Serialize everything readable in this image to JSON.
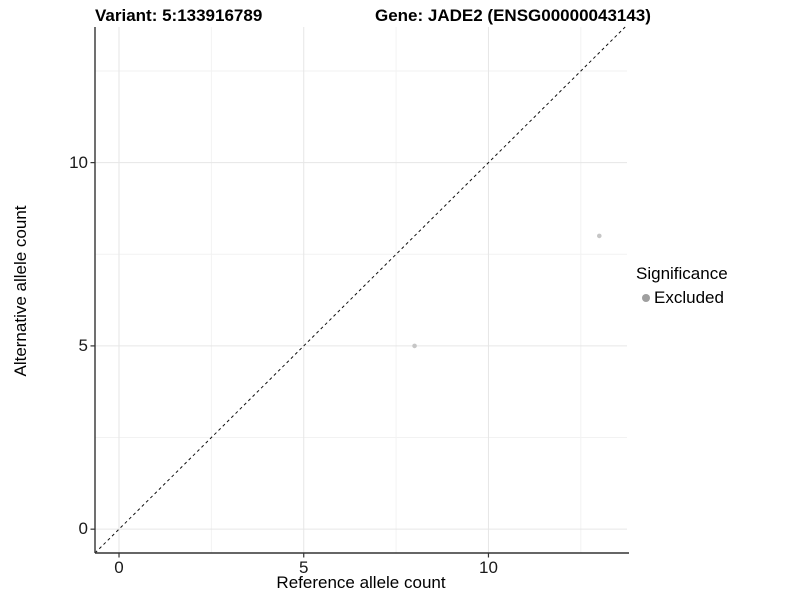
{
  "title_left": "Variant: 5:133916789",
  "title_right": "Gene: JADE2 (ENSG00000043143)",
  "chart_data": {
    "type": "scatter",
    "xlabel": "Reference allele count",
    "ylabel": "Alternative allele count",
    "xlim": [
      -0.65,
      13.75
    ],
    "ylim": [
      -0.65,
      13.7
    ],
    "x_ticks": [
      0,
      5,
      10
    ],
    "y_ticks": [
      0,
      5,
      10
    ],
    "x_minor_ticks": [
      2.5,
      7.5,
      12.5
    ],
    "y_minor_ticks": [
      2.5,
      7.5,
      12.5
    ],
    "grid": true,
    "points": [
      {
        "x": 8,
        "y": 5,
        "series": "Excluded"
      },
      {
        "x": 13,
        "y": 8,
        "series": "Excluded"
      }
    ],
    "reference_line": {
      "kind": "identity",
      "style": "dashed",
      "equation": "y = x"
    },
    "legend": {
      "position": "right",
      "title": "Significance",
      "entries": [
        {
          "label": "Excluded",
          "color": "#9f9f9f"
        }
      ]
    }
  },
  "colors": {
    "background": "#ffffff",
    "point": "#c6c6c6",
    "grid_major": "#e6e6e6",
    "grid_minor": "#f2f2f2",
    "axis_line": "#333333",
    "reference_line": "#111111",
    "text": "#000000"
  }
}
